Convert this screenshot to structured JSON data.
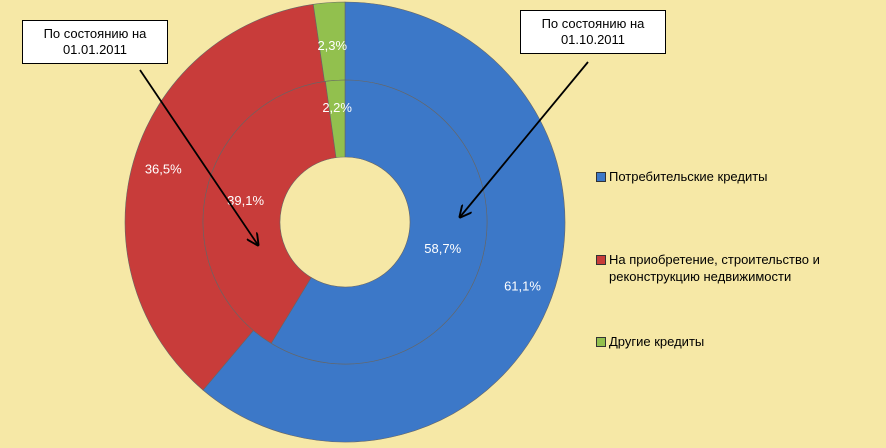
{
  "chart_data": {
    "type": "donut",
    "categories": [
      "Потребительские кредиты",
      "На приобретение, строительство и реконструкцию недвижимости",
      "Другие кредиты"
    ],
    "series": [
      {
        "values": [
          61.1,
          36.5,
          2.3
        ],
        "value_labels": [
          "61,1%",
          "36,5%",
          "2,3%"
        ]
      },
      {
        "values": [
          58.7,
          39.1,
          2.2
        ],
        "value_labels": [
          "58,7%",
          "39,1%",
          "2,2%"
        ]
      }
    ],
    "colors": [
      "#3c78c8",
      "#c83c3a",
      "#92c04e"
    ],
    "annotations": [
      "По состоянию на 01.01.2011",
      "По состоянию на 01.10.2011"
    ],
    "legend": "right"
  }
}
